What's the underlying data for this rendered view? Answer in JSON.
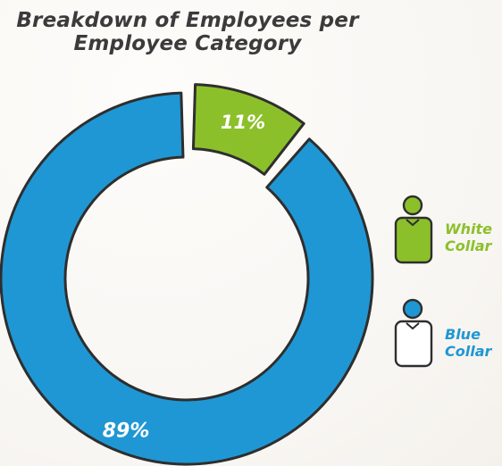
{
  "title_line1": "Breakdown of Employees per",
  "title_line2": "Employee Category",
  "colors": {
    "white_collar": "#8cc02a",
    "blue_collar": "#1f97d4",
    "outline": "#2e2e2e",
    "label_text": "#ffffff"
  },
  "chart_data": {
    "type": "pie",
    "title": "Breakdown of Employees per Employee Category",
    "donut": true,
    "series": [
      {
        "name": "White Collar",
        "value": 11,
        "label": "11%",
        "color": "#8cc02a",
        "exploded": true
      },
      {
        "name": "Blue Collar",
        "value": 89,
        "label": "89%",
        "color": "#1f97d4",
        "exploded": false
      }
    ]
  },
  "legend": [
    {
      "name": "White\nCollar",
      "color": "#8cc02a",
      "icon": "person-icon"
    },
    {
      "name": "Blue\nCollar",
      "color": "#1f97d4",
      "icon": "person-icon"
    }
  ]
}
